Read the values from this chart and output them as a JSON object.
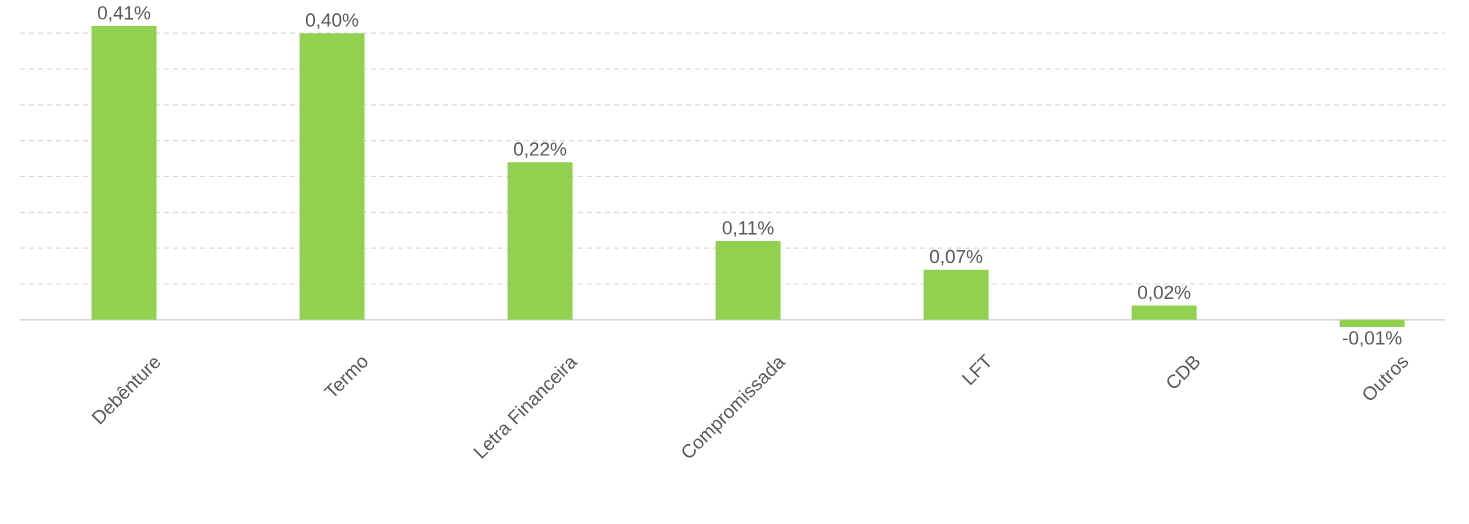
{
  "chart_data": {
    "type": "bar",
    "categories": [
      "Debênture",
      "Termo",
      "Letra Financeira",
      "Compromissada",
      "LFT",
      "CDB",
      "Outros"
    ],
    "values": [
      0.41,
      0.4,
      0.22,
      0.11,
      0.07,
      0.02,
      -0.01
    ],
    "value_labels": [
      "0,41%",
      "0,40%",
      "0,22%",
      "0,11%",
      "0,07%",
      "0,02%",
      "-0,01%"
    ],
    "color": "#92d050",
    "grid": "y",
    "tick_labels": "x"
  }
}
